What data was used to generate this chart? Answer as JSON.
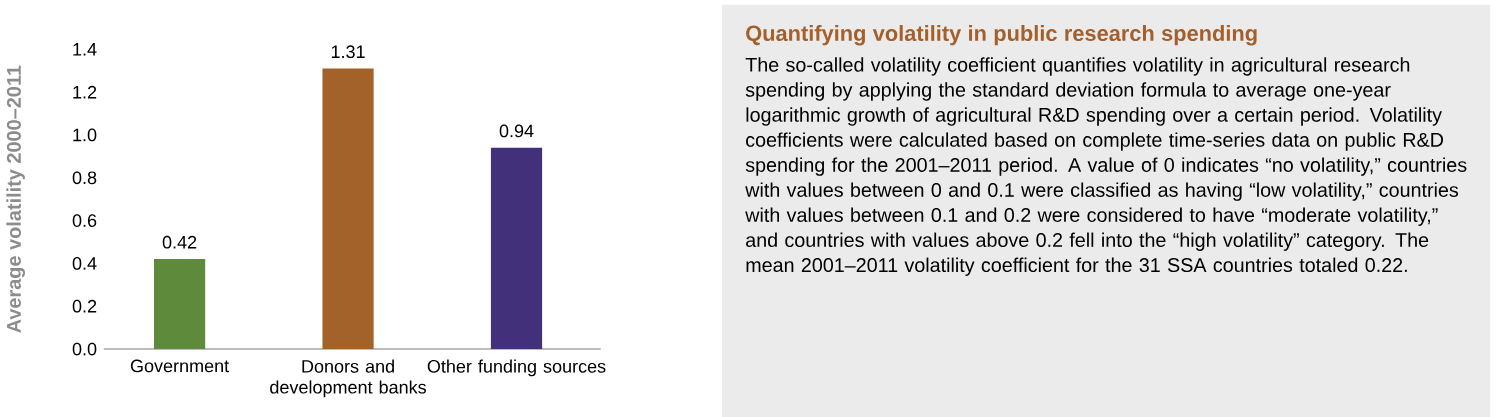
{
  "chart_data": [
    {
      "type": "bar",
      "ylabel": "Average volatility 2000–2011",
      "categories": [
        "Government",
        "Donors and development banks",
        "Other funding sources"
      ],
      "values": [
        0.42,
        1.31,
        0.94
      ],
      "colors": [
        "#5e8a3c",
        "#a4622b",
        "#43307a"
      ],
      "ylim": [
        0,
        1.4
      ],
      "yticks": [
        {
          "value": 0,
          "label": "0.0"
        },
        0.2,
        0.4,
        0.6,
        0.8,
        {
          "value": 1,
          "label": "1.0"
        },
        1.2,
        1.4
      ],
      "data_labels": true
    },
    {
      "type": "other",
      "title": "Quantifying volatility in public research spending",
      "annotations": [
        "The so-called volatility coefficient quantifies volatility in agricultural research spending by applying the standard deviation formula to average one-year logarithmic growth of agricultural R&D spending over a certain period. Volatility coefficients were calculated based on complete time-series data on public R&D spending for the 2001–2011 period. A value of 0 indicates “no volatility,” countries with values between 0 and 0.1 were classified as having “low volatility,” countries with values between 0.1 and 0.2 were considered to have “moderate volatility,” and countries with values above 0.2 fell into the “high volatility” category.  The mean 2001–2011 volatility coefficient for the 31 SSA countries totaled 0.22."
      ]
    }
  ]
}
